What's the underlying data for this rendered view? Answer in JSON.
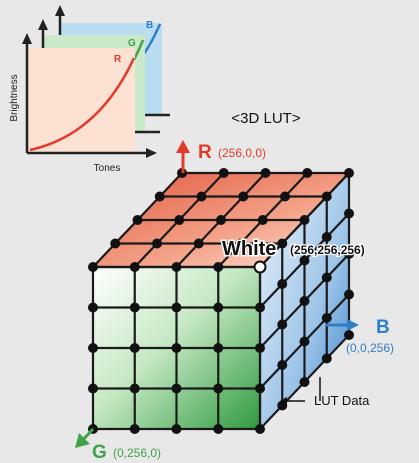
{
  "diagram_title": "<3D LUT>",
  "curve_panel": {
    "y_axis_label": "Brightness",
    "x_axis_label": "Tones",
    "curve_labels": {
      "r": "R",
      "g": "G",
      "b": "B"
    }
  },
  "cube": {
    "r_axis": {
      "label": "R",
      "coord": "(256,0,0)"
    },
    "b_axis": {
      "label": "B",
      "coord": "(0,0,256)"
    },
    "g_axis": {
      "label": "G",
      "coord": "(0,256,0)"
    },
    "white_corner": {
      "label": "White",
      "coord": "(256,256,256)"
    },
    "lut_data_label": "LUT Data"
  },
  "colors": {
    "background": "#e8e8e8",
    "red": "#e33a2c",
    "green": "#3ea34b",
    "blue": "#2f7fc8",
    "panel_red": "#fde1d2",
    "panel_green": "#c9e9c8",
    "panel_blue": "#b9dcf0"
  }
}
